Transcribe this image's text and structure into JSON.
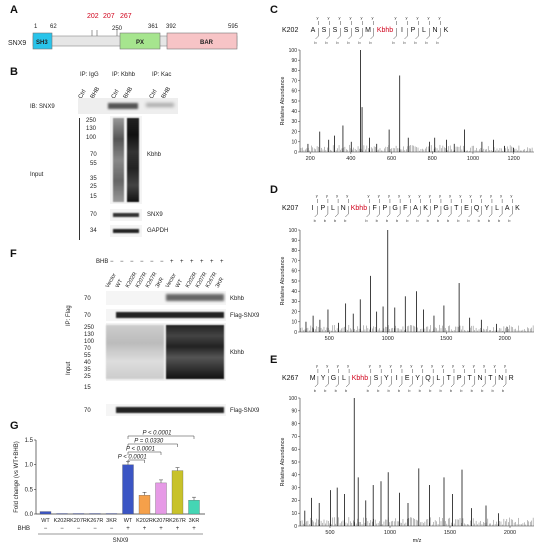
{
  "panelA": {
    "label": "A",
    "protein": "SNX9",
    "positions": [
      "1",
      "62",
      "250",
      "361",
      "392",
      "595"
    ],
    "highlight_sites": [
      "202",
      "207",
      "267"
    ],
    "domains": [
      {
        "name": "SH3",
        "color": "#29c4ea"
      },
      {
        "name": "PX",
        "color": "#a6e58e"
      },
      {
        "name": "BAR",
        "color": "#f7c4c6"
      }
    ]
  },
  "panelB": {
    "label": "B",
    "ip_groups": [
      "IP: IgG",
      "IP: Kbhb",
      "IP: Kac"
    ],
    "lanes": [
      "Ctrl",
      "BHB",
      "Ctrl",
      "BHB",
      "Ctrl",
      "BHB"
    ],
    "ib_label": "IB: SNX9",
    "input_label": "Input",
    "markers": [
      "250",
      "130",
      "100",
      "70",
      "55",
      "35",
      "25",
      "15"
    ],
    "lower_markers": [
      "70",
      "34"
    ],
    "band_labels": [
      "Kbhb",
      "SNX9",
      "GAPDH"
    ]
  },
  "panelF": {
    "label": "F",
    "treatment": "BHB",
    "signs": [
      "−",
      "−",
      "−",
      "−",
      "−",
      "−",
      "+",
      "+",
      "+",
      "+",
      "+",
      "+"
    ],
    "lanes": [
      "Vector",
      "WT",
      "K202R",
      "K207R",
      "K267R",
      "3KR",
      "Vector",
      "WT",
      "K202R",
      "K207R",
      "K267R",
      "3KR"
    ],
    "ip_label": "IP: Flag",
    "input_label": "Input",
    "ip_markers": [
      "70",
      "70"
    ],
    "input_markers": [
      "250",
      "130",
      "100",
      "70",
      "55",
      "40",
      "35",
      "25",
      "15",
      "70"
    ],
    "band_labels": [
      "Kbhb",
      "Flag-SNX9",
      "Kbhb",
      "Flag-SNX9"
    ]
  },
  "panelG": {
    "label": "G",
    "ylabel": "Fold change (vs WT+BHB)",
    "x_group": "SNX9",
    "bhb_label": "BHB",
    "bhb_signs": [
      "−",
      "−",
      "−",
      "−",
      "−",
      "+",
      "+",
      "+",
      "+",
      "+"
    ],
    "pvalues": [
      "P < 0.0001",
      "P = 0.0330",
      "P < 0.0001",
      "P < 0.0001"
    ],
    "chart_data": {
      "type": "bar",
      "categories": [
        "WT",
        "K202R",
        "K207R",
        "K267R",
        "3KR",
        "WT",
        "K202R",
        "K207R",
        "K267R",
        "3KR"
      ],
      "values": [
        0.05,
        0.01,
        0.01,
        0.01,
        0.01,
        1.0,
        0.38,
        0.63,
        0.88,
        0.28
      ],
      "colors": [
        "#3b55c4",
        "#3b55c4",
        "#3b55c4",
        "#3b55c4",
        "#3b55c4",
        "#3b55c4",
        "#f5a04a",
        "#e69ae6",
        "#c8c22a",
        "#44d6b4"
      ],
      "yticks": [
        "0.0",
        "0.5",
        "1.0",
        "1.5"
      ],
      "ylim": [
        0,
        1.5
      ]
    }
  },
  "panelC": {
    "label": "C",
    "site": "K202",
    "sequence": [
      "A",
      "S",
      "S",
      "S",
      "S",
      "M",
      "Kbhb",
      "I",
      "P",
      "L",
      "N",
      "K"
    ],
    "ylabel": "Relative Abundance",
    "xlabel": "",
    "yticks": [
      "0",
      "10",
      "20",
      "30",
      "40",
      "50",
      "60",
      "70",
      "80",
      "90",
      "100"
    ],
    "xticks": [
      "200",
      "400",
      "600",
      "800",
      "1000",
      "1200"
    ],
    "xrange": [
      150,
      1300
    ],
    "peaks": [
      [
        189,
        8
      ],
      [
        247,
        20
      ],
      [
        291,
        12
      ],
      [
        320,
        16
      ],
      [
        361,
        26
      ],
      [
        402,
        10
      ],
      [
        447,
        100
      ],
      [
        455,
        44
      ],
      [
        491,
        14
      ],
      [
        527,
        8
      ],
      [
        588,
        22
      ],
      [
        640,
        75
      ],
      [
        682,
        14
      ],
      [
        786,
        10
      ],
      [
        812,
        14
      ],
      [
        870,
        12
      ],
      [
        908,
        8
      ],
      [
        958,
        22
      ],
      [
        1044,
        10
      ],
      [
        1101,
        12
      ],
      [
        1155,
        6
      ],
      [
        1200,
        4
      ]
    ]
  },
  "panelD": {
    "label": "D",
    "site": "K207",
    "sequence": [
      "I",
      "P",
      "L",
      "N",
      "Kbhb",
      "F",
      "P",
      "G",
      "F",
      "A",
      "K",
      "P",
      "G",
      "T",
      "E",
      "Q",
      "Y",
      "L",
      "A",
      "K"
    ],
    "ylabel": "Relative Abundance",
    "yticks": [
      "0",
      "10",
      "20",
      "30",
      "40",
      "50",
      "60",
      "70",
      "80",
      "90",
      "100"
    ],
    "xticks": [
      "500",
      "1000",
      "1500",
      "2000"
    ],
    "xrange": [
      250,
      2250
    ],
    "peaks": [
      [
        301,
        10
      ],
      [
        362,
        16
      ],
      [
        420,
        12
      ],
      [
        489,
        22
      ],
      [
        580,
        9
      ],
      [
        640,
        28
      ],
      [
        705,
        18
      ],
      [
        765,
        32
      ],
      [
        852,
        55
      ],
      [
        905,
        20
      ],
      [
        960,
        25
      ],
      [
        1000,
        100
      ],
      [
        1060,
        24
      ],
      [
        1150,
        35
      ],
      [
        1245,
        40
      ],
      [
        1305,
        22
      ],
      [
        1395,
        16
      ],
      [
        1480,
        26
      ],
      [
        1610,
        48
      ],
      [
        1700,
        14
      ],
      [
        1800,
        12
      ],
      [
        1930,
        8
      ],
      [
        2020,
        5
      ]
    ]
  },
  "panelE": {
    "label": "E",
    "site": "K267",
    "sequence": [
      "M",
      "Y",
      "G",
      "L",
      "Kbhb",
      "S",
      "Y",
      "I",
      "E",
      "Y",
      "Q",
      "L",
      "T",
      "P",
      "T",
      "N",
      "T",
      "N",
      "R"
    ],
    "ylabel": "Relative Abundance",
    "xlabel": "m/z",
    "yticks": [
      "0",
      "10",
      "20",
      "30",
      "40",
      "50",
      "60",
      "70",
      "80",
      "90",
      "100"
    ],
    "xticks": [
      "500",
      "1000",
      "1500",
      "2000"
    ],
    "xrange": [
      250,
      2200
    ],
    "peaks": [
      [
        290,
        12
      ],
      [
        345,
        22
      ],
      [
        410,
        18
      ],
      [
        505,
        28
      ],
      [
        560,
        30
      ],
      [
        620,
        25
      ],
      [
        702,
        100
      ],
      [
        735,
        38
      ],
      [
        798,
        20
      ],
      [
        860,
        32
      ],
      [
        925,
        35
      ],
      [
        985,
        42
      ],
      [
        1080,
        26
      ],
      [
        1150,
        18
      ],
      [
        1240,
        45
      ],
      [
        1330,
        32
      ],
      [
        1450,
        38
      ],
      [
        1520,
        25
      ],
      [
        1600,
        44
      ],
      [
        1680,
        14
      ],
      [
        1800,
        16
      ],
      [
        1905,
        10
      ]
    ]
  }
}
